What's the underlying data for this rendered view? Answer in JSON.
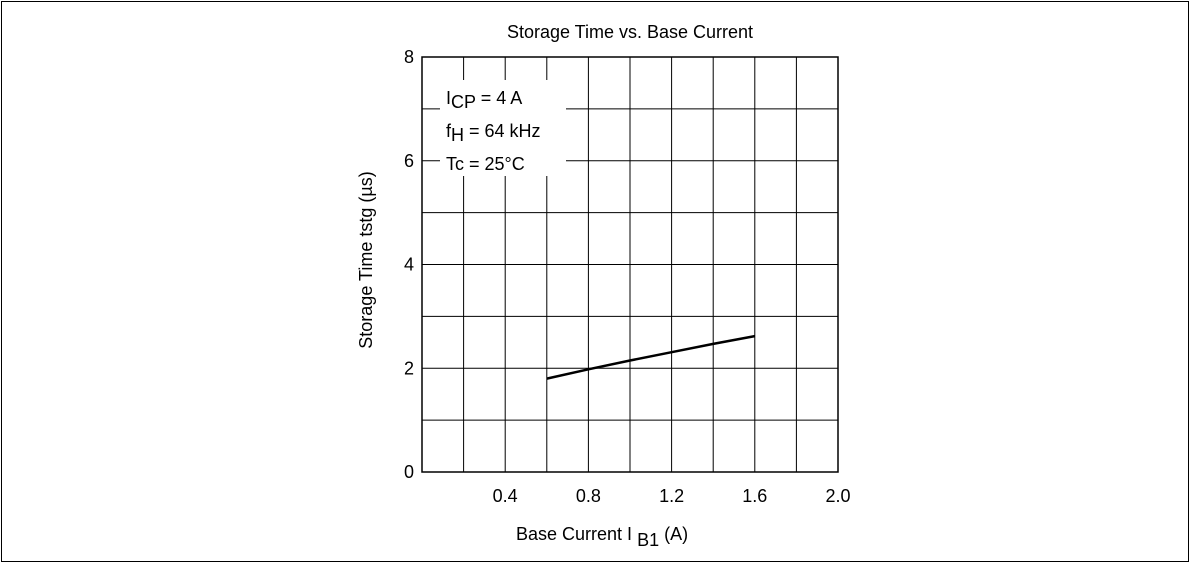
{
  "chart_data": {
    "type": "line",
    "title": "Storage Time vs. Base Current",
    "xlabel": {
      "main": "Base Current",
      "var": "I",
      "sub": "B1",
      "unit": "(A)"
    },
    "ylabel": "Storage Time   tstg  (µs)",
    "xlim": [
      0,
      2.0
    ],
    "ylim": [
      0,
      8
    ],
    "x_ticks": [
      0.4,
      0.8,
      1.2,
      1.6,
      2.0
    ],
    "x_tick_labels": [
      "0.4",
      "0.8",
      "1.2",
      "1.6",
      "2.0"
    ],
    "y_ticks": [
      0,
      2,
      4,
      6,
      8
    ],
    "y_tick_labels": [
      "0",
      "2",
      "4",
      "6",
      "8"
    ],
    "grid": true,
    "conditions": [
      {
        "pre": "I",
        "sub": "CP",
        "post": " = 4 A"
      },
      {
        "pre": "f",
        "sub": "H",
        "post": " = 64 kHz"
      },
      {
        "pre": "Tc = 25°C",
        "sub": "",
        "post": ""
      }
    ],
    "series": [
      {
        "x": [
          0.6,
          0.8,
          1.0,
          1.2,
          1.4,
          1.6
        ],
        "y": [
          1.8,
          1.98,
          2.15,
          2.31,
          2.47,
          2.62
        ]
      }
    ],
    "line_color": "#000000"
  }
}
